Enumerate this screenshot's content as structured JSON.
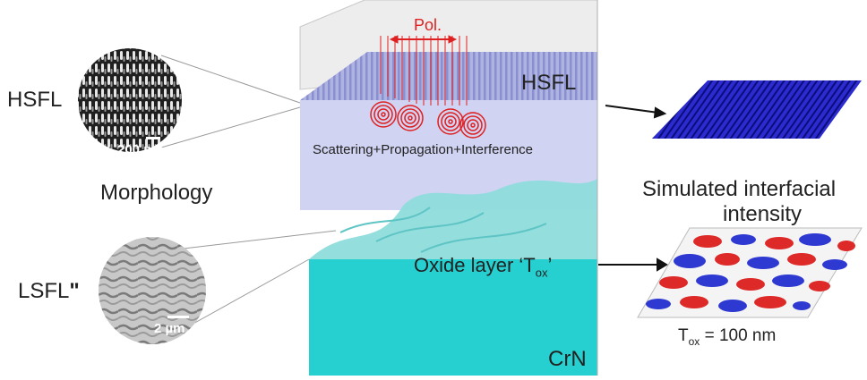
{
  "labels": {
    "hsfl_left": "HSFL",
    "morphology": "Morphology",
    "lsfl_left": "LSFL",
    "lsfl_mark": "\"",
    "scale_hsfl": "200 nm",
    "scale_lsfl": "2 µm",
    "hsfl_block": "HSFL",
    "polarization": "Pol.",
    "process": "Scattering+Propagation+Interference",
    "oxide_prefix": "Oxide layer ‘T",
    "oxide_sub": "ox",
    "oxide_suffix": "’",
    "substrate": "CrN",
    "simulated_line1": "Simulated interfacial",
    "simulated_line2": "intensity",
    "tox_prefix": "T",
    "tox_sub": "ox",
    "tox_value": " = 100 nm"
  },
  "colors": {
    "block_top": "#b9bde6",
    "block_face": "#c9cdf0",
    "oxide": "#6fd5d5",
    "substrate": "#2ad1d1",
    "red": "#e02020",
    "blue_map": "#2727c9",
    "sim_red": "#dd1f1f",
    "sim_blue": "#2430d0"
  }
}
